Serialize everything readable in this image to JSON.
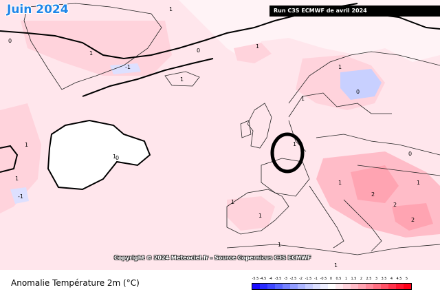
{
  "header": {
    "title": "Juin 2024",
    "run_label": "Run C3S ECMWF de avril 2024"
  },
  "map": {
    "copyright": "Copyright © 2024 Meteociel.fr - Source Copernicus C3S ECMWF",
    "contour_labels": [
      "1",
      "0",
      "-1",
      "1",
      "1",
      "0",
      "1",
      "-1",
      "1",
      "1",
      "0",
      "1",
      "1",
      "1",
      "0",
      "2",
      "2",
      "2",
      "1",
      "1",
      "1",
      "0",
      "1",
      "1",
      "1",
      "1"
    ]
  },
  "legend": {
    "title": "Anomalie Température 2m (°C)",
    "labels": [
      "-5.5",
      "-4.5",
      "-4",
      "-3.5",
      "-3",
      "-2.5",
      "-2",
      "-1.5",
      "-1",
      "-0.5",
      "0",
      "0.5",
      "1",
      "1.5",
      "2",
      "2.5",
      "3",
      "3.5",
      "4",
      "4.5",
      "5"
    ],
    "colors": [
      "#1a0cff",
      "#2a2cff",
      "#3f48ff",
      "#5866ff",
      "#7582ff",
      "#929dff",
      "#adb6ff",
      "#c6ccff",
      "#dde0ff",
      "#eeefff",
      "#ffffff",
      "#ffe9ee",
      "#ffd3dc",
      "#ffbcc8",
      "#ffa4b2",
      "#ff8a9b",
      "#ff6f82",
      "#ff5267",
      "#ff334b",
      "#ff1630",
      "#ff0019"
    ]
  }
}
